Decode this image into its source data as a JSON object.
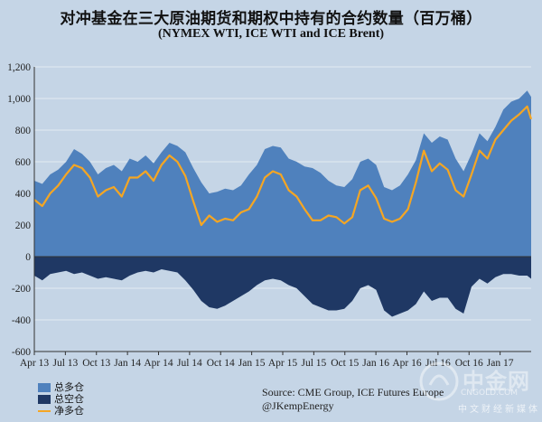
{
  "title": "对冲基金在三大原油期货和期权中持有的合约数量（百万桶）",
  "subtitle": "(NYMEX WTI, ICE WTI and ICE Brent)",
  "colors": {
    "background": "#c5d5e6",
    "gross_long": "#4f81bd",
    "gross_short": "#1f3864",
    "net_long": "#f5a623"
  },
  "legend": {
    "gross_long_label": "总多仓",
    "gross_short_label": "总空仓",
    "net_long_label": "净多仓"
  },
  "source": {
    "line1": "Source:  CME Group, ICE Futures Europe",
    "line2": "@JKempEnergy"
  },
  "watermark": {
    "big": "中金网",
    "url": "CNGOLD.COM",
    "cn": "中文财经新媒体"
  },
  "chart_data": {
    "type": "area",
    "ylim": [
      -600,
      1200
    ],
    "yticks": [
      -600,
      -400,
      -200,
      0,
      200,
      400,
      600,
      800,
      1000,
      1200
    ],
    "ytick_labels": [
      "-600",
      "-400",
      "-200",
      "0",
      "200",
      "400",
      "600",
      "800",
      "1,000",
      "1,200"
    ],
    "xlim": [
      0,
      100
    ],
    "xtick_labels": [
      "Apr 13",
      "Jul 13",
      "Oct 13",
      "Jan 14",
      "Apr 14",
      "Jul 14",
      "Oct 14",
      "Jan 15",
      "Apr 15",
      "Jul 15",
      "Oct 15",
      "Jan 16",
      "Apr 16",
      "Jul 16",
      "Oct 16",
      "Jan 17"
    ],
    "xtick_positions": [
      0,
      6.25,
      12.5,
      18.75,
      25,
      31.25,
      37.5,
      43.75,
      50,
      56.25,
      62.5,
      68.75,
      75,
      81.25,
      87.5,
      93.75
    ],
    "x": [
      0,
      1.6,
      3.2,
      4.8,
      6.4,
      8,
      9.6,
      11.2,
      12.8,
      14.4,
      16,
      17.6,
      19.2,
      20.8,
      22.4,
      24,
      25.6,
      27.2,
      28.8,
      30.4,
      32,
      33.6,
      35.2,
      36.8,
      38.4,
      40,
      41.6,
      43.2,
      44.8,
      46.4,
      48,
      49.6,
      51.2,
      52.8,
      54.4,
      56,
      57.6,
      59.2,
      60.8,
      62.4,
      64,
      65.6,
      67.2,
      68.8,
      70.4,
      72,
      73.6,
      75.2,
      76.8,
      78.4,
      80,
      81.6,
      83.2,
      84.8,
      86.4,
      88,
      89.6,
      91.2,
      92.8,
      94.4,
      96,
      97.6,
      99.2,
      100
    ],
    "series": [
      {
        "name": "总多仓",
        "values": [
          480,
          460,
          520,
          550,
          600,
          680,
          650,
          600,
          520,
          560,
          580,
          540,
          620,
          600,
          640,
          590,
          660,
          720,
          700,
          660,
          560,
          470,
          400,
          410,
          430,
          420,
          450,
          520,
          580,
          680,
          700,
          690,
          620,
          600,
          570,
          560,
          530,
          480,
          450,
          440,
          490,
          600,
          620,
          580,
          440,
          420,
          450,
          520,
          610,
          780,
          720,
          760,
          740,
          620,
          540,
          650,
          780,
          730,
          820,
          930,
          980,
          1000,
          1050,
          1010
        ]
      },
      {
        "name": "总空仓",
        "values": [
          -120,
          -150,
          -110,
          -100,
          -90,
          -110,
          -100,
          -120,
          -140,
          -130,
          -140,
          -150,
          -120,
          -100,
          -90,
          -100,
          -80,
          -90,
          -100,
          -150,
          -210,
          -280,
          -320,
          -330,
          -310,
          -280,
          -250,
          -220,
          -180,
          -150,
          -140,
          -150,
          -180,
          -200,
          -250,
          -300,
          -320,
          -340,
          -340,
          -330,
          -280,
          -200,
          -180,
          -210,
          -340,
          -380,
          -360,
          -340,
          -300,
          -220,
          -280,
          -260,
          -260,
          -330,
          -360,
          -190,
          -140,
          -170,
          -130,
          -110,
          -110,
          -120,
          -120,
          -140
        ]
      },
      {
        "name": "净多仓",
        "values": [
          360,
          320,
          400,
          450,
          520,
          580,
          560,
          500,
          380,
          420,
          440,
          380,
          500,
          500,
          540,
          480,
          580,
          640,
          600,
          510,
          350,
          200,
          260,
          220,
          240,
          230,
          280,
          300,
          380,
          500,
          540,
          520,
          420,
          380,
          300,
          230,
          230,
          260,
          250,
          210,
          250,
          420,
          450,
          370,
          240,
          220,
          240,
          300,
          470,
          670,
          540,
          590,
          550,
          420,
          380,
          520,
          670,
          620,
          740,
          800,
          860,
          900,
          950,
          870
        ]
      }
    ]
  }
}
